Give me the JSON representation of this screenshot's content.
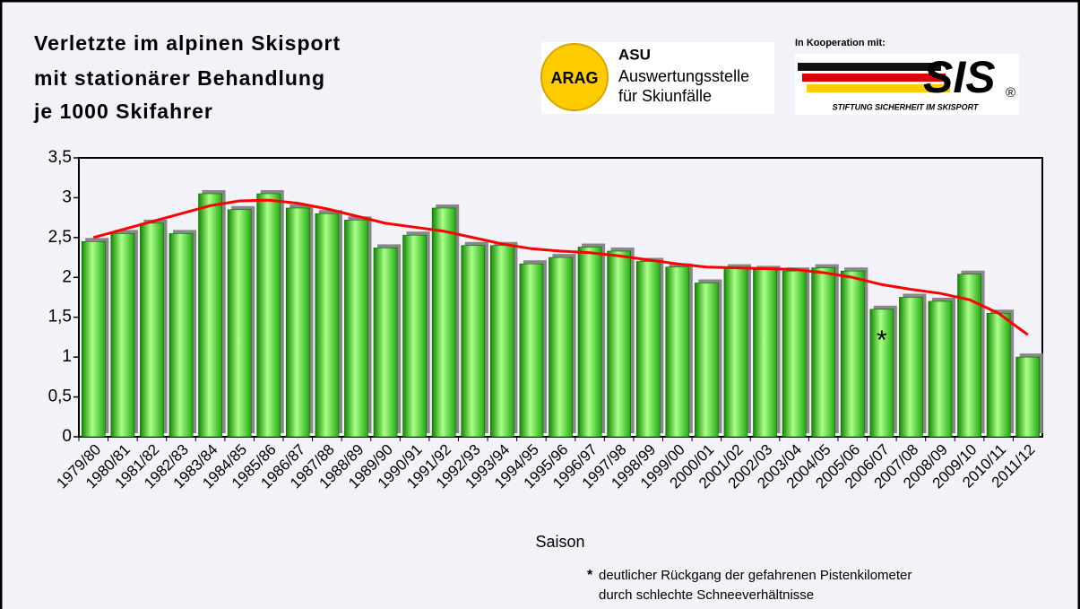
{
  "chart_data": {
    "type": "bar",
    "title": [
      "Verletzte im alpinen Skisport",
      "mit stationärer Behandlung",
      "je 1000 Skifahrer"
    ],
    "logos": {
      "arag": "ARAG",
      "asu": [
        "ASU",
        "Auswertungsstelle",
        "für Skiunfälle"
      ],
      "cooperation": "In Kooperation mit:",
      "sis": "SIS",
      "sis_sub": "STIFTUNG SICHERHEIT IM SKISPORT",
      "registered": "®"
    },
    "x_label": "Saison",
    "categories": [
      "1979/80",
      "1980/81",
      "1981/82",
      "1982/83",
      "1983/84",
      "1984/85",
      "1985/86",
      "1986/87",
      "1987/88",
      "1988/89",
      "1989/90",
      "1990/91",
      "1991/92",
      "1992/93",
      "1993/94",
      "1994/95",
      "1995/96",
      "1996/97",
      "1997/98",
      "1998/99",
      "1999/00",
      "2000/01",
      "2001/02",
      "2002/03",
      "2003/04",
      "2004/05",
      "2005/06",
      "2006/07",
      "2007/08",
      "2008/09",
      "2009/10",
      "2010/11",
      "2011/12"
    ],
    "values": [
      2.45,
      2.55,
      2.68,
      2.55,
      3.05,
      2.85,
      3.05,
      2.87,
      2.8,
      2.72,
      2.37,
      2.53,
      2.87,
      2.4,
      2.4,
      2.17,
      2.25,
      2.38,
      2.33,
      2.2,
      2.13,
      1.93,
      2.12,
      2.1,
      2.08,
      2.12,
      2.08,
      1.6,
      1.75,
      1.7,
      2.04,
      1.55,
      1.0
    ],
    "color": "#33cc22",
    "trend": {
      "color": "#ff0000",
      "values": [
        2.5,
        2.6,
        2.7,
        2.8,
        2.9,
        2.96,
        2.97,
        2.93,
        2.86,
        2.77,
        2.68,
        2.63,
        2.58,
        2.5,
        2.42,
        2.36,
        2.33,
        2.31,
        2.27,
        2.22,
        2.17,
        2.13,
        2.12,
        2.11,
        2.1,
        2.06,
        2.0,
        1.91,
        1.85,
        1.8,
        1.72,
        1.55,
        1.28
      ]
    },
    "ylim": [
      0,
      3.5
    ],
    "yticks": [
      0,
      {
        "value": 0.5,
        "label": "0,5"
      },
      1,
      {
        "value": 1.5,
        "label": "1,5"
      },
      2,
      {
        "value": 2.5,
        "label": "2,5"
      },
      3,
      {
        "value": 3.5,
        "label": "3,5"
      }
    ],
    "annotation": {
      "category": 27,
      "text": "*"
    },
    "footnote": [
      "deutlicher Rückgang der gefahrenen Pistenkilometer",
      "durch schlechte Schneeverhältnisse"
    ]
  }
}
